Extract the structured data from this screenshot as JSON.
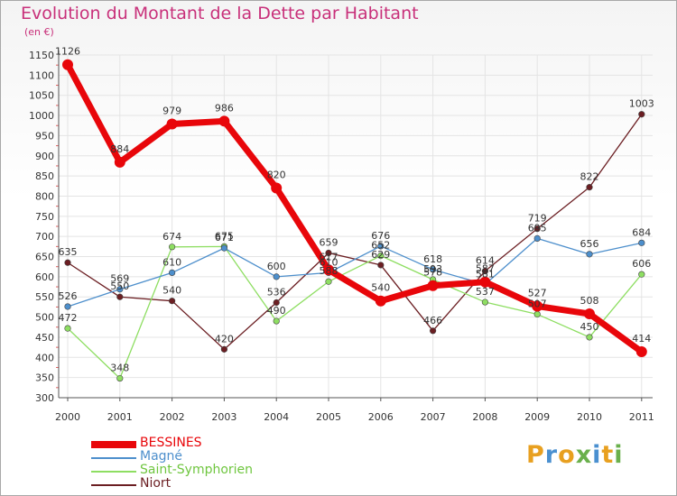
{
  "colors": {
    "title": "#c8307a",
    "axis": "#555555",
    "grid": "#e4e4e4"
  },
  "header": {
    "title": "Evolution du Montant de la Dette par Habitant",
    "unit": "(en €)"
  },
  "brand": {
    "letters": [
      "P",
      "r",
      "o",
      "x",
      "i",
      "t",
      "i"
    ],
    "colors": [
      "#e8a020",
      "#4a90d0",
      "#e8a020",
      "#6ab04c",
      "#4a90d0",
      "#e8a020",
      "#6ab04c"
    ]
  },
  "chart_data": {
    "type": "line",
    "title": "Evolution du Montant de la Dette par Habitant",
    "ylabel": "(en €)",
    "xlabel": "",
    "x": [
      "2000",
      "2001",
      "2002",
      "2003",
      "2004",
      "2005",
      "2006",
      "2007",
      "2008",
      "2009",
      "2010",
      "2011"
    ],
    "ylim": [
      300,
      1150
    ],
    "yticks": [
      300,
      350,
      400,
      450,
      500,
      550,
      600,
      650,
      700,
      750,
      800,
      850,
      900,
      950,
      1000,
      1050,
      1100,
      1150
    ],
    "grid": true,
    "legend": "bottom-left",
    "series": [
      {
        "name": "BESSINES",
        "color": "#e8060a",
        "width": 7,
        "marker": 6,
        "values": [
          1126,
          884,
          979,
          986,
          820,
          617,
          540,
          578,
          587,
          527,
          508,
          414
        ]
      },
      {
        "name": "Magné",
        "color": "#4d8fcc",
        "width": 1.3,
        "marker": 3.3,
        "values": [
          526,
          569,
          610,
          671,
          600,
          610,
          676,
          618,
          581,
          695,
          656,
          684
        ]
      },
      {
        "name": "Saint-Symphorien",
        "color": "#8ede62",
        "width": 1.3,
        "marker": 3.3,
        "values": [
          472,
          348,
          674,
          675,
          490,
          588,
          652,
          593,
          537,
          507,
          450,
          606
        ]
      },
      {
        "name": "Niort",
        "color": "#6b1e22",
        "width": 1.3,
        "marker": 3.3,
        "values": [
          635,
          550,
          540,
          420,
          536,
          659,
          629,
          466,
          614,
          719,
          822,
          1003
        ]
      }
    ]
  }
}
